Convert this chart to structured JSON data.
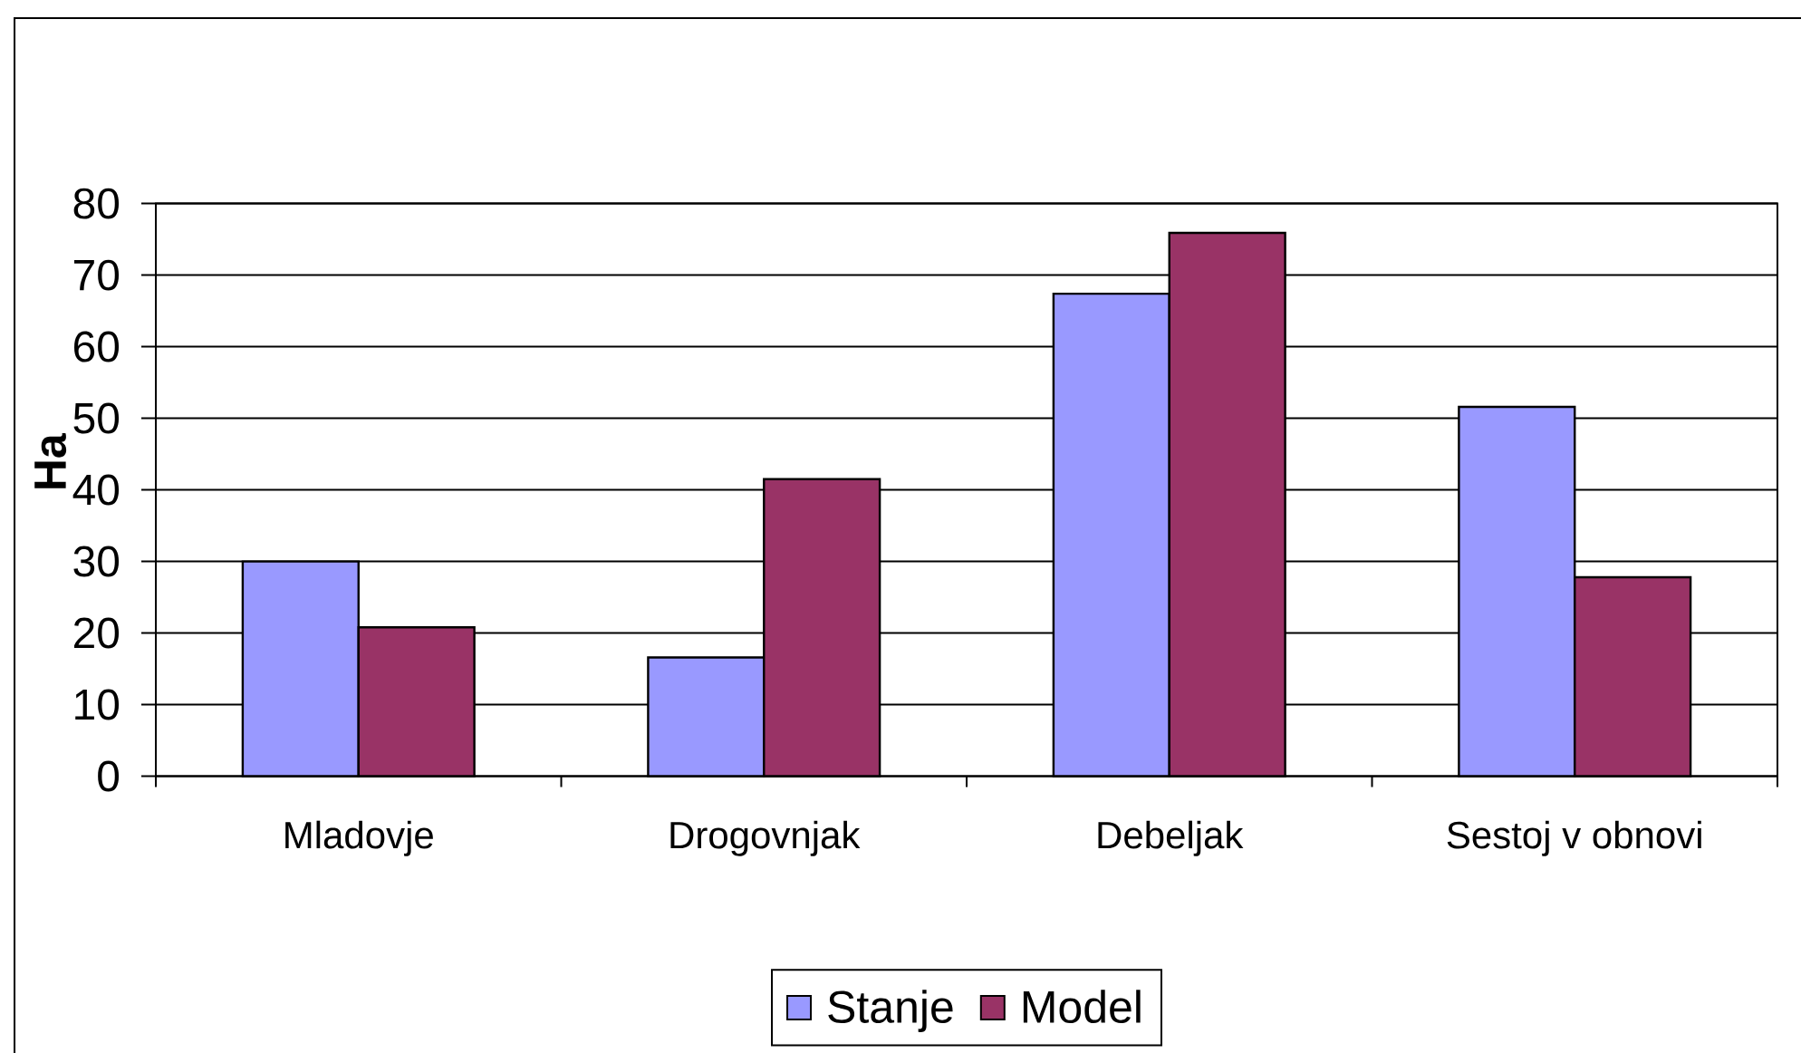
{
  "chart_data": {
    "type": "bar",
    "ylabel": "Ha",
    "categories": [
      "Mladovje",
      "Drogovnjak",
      "Debeljak",
      "Sestoj v obnovi"
    ],
    "series": [
      {
        "name": "Stanje",
        "color": "#9999ff",
        "values": [
          30,
          16.6,
          67.4,
          51.6
        ]
      },
      {
        "name": "Model",
        "color": "#993366",
        "values": [
          20.8,
          41.5,
          75.9,
          27.8
        ]
      }
    ],
    "ylim": [
      0,
      80
    ],
    "yticks": [
      0,
      10,
      20,
      30,
      40,
      50,
      60,
      70,
      80
    ],
    "grid": "y",
    "legend": "bottom"
  }
}
